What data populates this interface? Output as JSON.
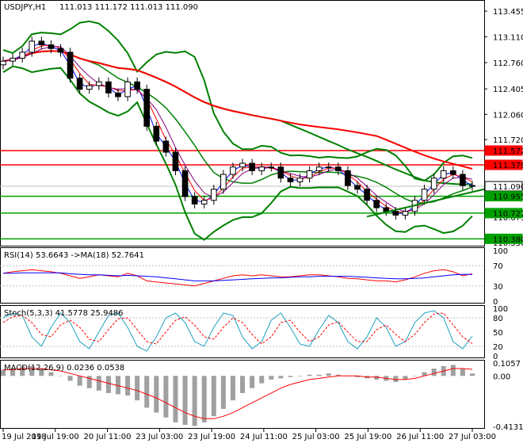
{
  "chart_data": {
    "type": "candlestick",
    "symbol_label": "USDJPY,H1",
    "ohlc_label": "111.013 111.172 111.013 111.090",
    "price_ticks": [
      "113.455",
      "113.110",
      "112.760",
      "112.405",
      "112.060",
      "111.720",
      "111.375",
      "111.030",
      "110.675",
      "110.330"
    ],
    "price_range": [
      110.33,
      113.52
    ],
    "levels": [
      {
        "label": "111.572",
        "value": 111.572,
        "kind": "resistance",
        "color": "#ff0000"
      },
      {
        "label": "111.379",
        "value": 111.379,
        "kind": "resistance",
        "color": "#ff0000"
      },
      {
        "label": "111.090",
        "value": 111.09,
        "kind": "current",
        "color": "#c0c0c0"
      },
      {
        "label": "110.955",
        "value": 110.955,
        "kind": "support",
        "color": "#00a000"
      },
      {
        "label": "110.727",
        "value": 110.727,
        "kind": "support",
        "color": "#00a000"
      },
      {
        "label": "110.380",
        "value": 110.38,
        "kind": "support",
        "color": "#00a000"
      }
    ],
    "closes": [
      112.78,
      112.82,
      112.9,
      113.05,
      113.0,
      112.95,
      112.9,
      112.55,
      112.4,
      112.45,
      112.5,
      112.35,
      112.3,
      112.5,
      112.4,
      111.9,
      111.7,
      111.55,
      111.3,
      110.95,
      110.85,
      110.9,
      111.05,
      111.25,
      111.35,
      111.4,
      111.3,
      111.35,
      111.35,
      111.2,
      111.15,
      111.2,
      111.3,
      111.35,
      111.35,
      111.3,
      111.1,
      111.05,
      110.9,
      110.8,
      110.75,
      110.7,
      110.75,
      110.9,
      111.05,
      111.2,
      111.3,
      111.25,
      111.1,
      111.09
    ],
    "time_labels": [
      "19 Jul 2018",
      "19 Jul 19:00",
      "20 Jul 11:00",
      "23 Jul 03:00",
      "23 Jul 19:00",
      "24 Jul 11:00",
      "25 Jul 03:00",
      "25 Jul 19:00",
      "26 Jul 11:00",
      "27 Jul 03:00"
    ],
    "rsi": {
      "label": "RSI(14) 53.6643 ->MA(18) 52.7641",
      "ticks": [
        "100",
        "70",
        "30",
        "0"
      ],
      "values": [
        55,
        58,
        60,
        62,
        60,
        58,
        55,
        50,
        45,
        48,
        52,
        50,
        48,
        55,
        50,
        40,
        38,
        36,
        34,
        32,
        30,
        35,
        40,
        45,
        50,
        52,
        50,
        52,
        50,
        48,
        48,
        50,
        52,
        52,
        50,
        48,
        45,
        44,
        42,
        40,
        40,
        38,
        42,
        48,
        55,
        60,
        62,
        58,
        50,
        54
      ],
      "ma": [
        55,
        55,
        56,
        56,
        56,
        56,
        56,
        54,
        53,
        52,
        52,
        51,
        50,
        51,
        50,
        49,
        48,
        46,
        44,
        42,
        40,
        40,
        40,
        41,
        42,
        43,
        44,
        45,
        46,
        46,
        47,
        48,
        48,
        49,
        49,
        49,
        49,
        48,
        47,
        46,
        45,
        44,
        44,
        45,
        46,
        48,
        50,
        52,
        53,
        52.8
      ]
    },
    "stoch": {
      "label": "Stoch(5,3,3) 41.5778 25.9486",
      "ticks": [
        "100",
        "80",
        "50",
        "20",
        "0"
      ],
      "k": [
        80,
        90,
        85,
        40,
        20,
        60,
        90,
        70,
        30,
        15,
        50,
        85,
        90,
        60,
        20,
        10,
        40,
        80,
        90,
        70,
        30,
        20,
        60,
        90,
        85,
        40,
        15,
        30,
        75,
        90,
        60,
        25,
        20,
        55,
        85,
        70,
        30,
        15,
        40,
        80,
        60,
        20,
        30,
        70,
        90,
        95,
        80,
        30,
        15,
        41.6
      ],
      "d": [
        70,
        82,
        85,
        70,
        45,
        40,
        65,
        75,
        60,
        35,
        30,
        55,
        78,
        80,
        55,
        30,
        25,
        50,
        75,
        82,
        65,
        40,
        35,
        60,
        80,
        70,
        45,
        25,
        40,
        70,
        75,
        50,
        30,
        40,
        65,
        72,
        50,
        30,
        30,
        55,
        65,
        45,
        30,
        45,
        70,
        88,
        90,
        65,
        40,
        25.9
      ]
    },
    "macd": {
      "label": "MACD(12,26,9) 0.0236 0.0538",
      "ticks": [
        "0.1057",
        "0.00",
        "-0.4131"
      ],
      "hist": [
        0.05,
        0.06,
        0.08,
        0.08,
        0.06,
        0.03,
        0.0,
        -0.04,
        -0.08,
        -0.1,
        -0.12,
        -0.14,
        -0.15,
        -0.16,
        -0.2,
        -0.26,
        -0.3,
        -0.34,
        -0.38,
        -0.4,
        -0.41,
        -0.38,
        -0.33,
        -0.27,
        -0.2,
        -0.14,
        -0.1,
        -0.06,
        -0.03,
        -0.02,
        -0.01,
        0.0,
        0.01,
        0.01,
        0.02,
        0.01,
        0.0,
        -0.01,
        -0.02,
        -0.03,
        -0.04,
        -0.05,
        -0.03,
        0.0,
        0.03,
        0.06,
        0.08,
        0.09,
        0.06,
        0.02
      ],
      "signal": [
        0.05,
        0.05,
        0.06,
        0.06,
        0.06,
        0.05,
        0.04,
        0.02,
        0.0,
        -0.02,
        -0.04,
        -0.06,
        -0.08,
        -0.1,
        -0.12,
        -0.15,
        -0.18,
        -0.22,
        -0.26,
        -0.3,
        -0.33,
        -0.35,
        -0.35,
        -0.33,
        -0.3,
        -0.26,
        -0.22,
        -0.18,
        -0.14,
        -0.1,
        -0.07,
        -0.05,
        -0.03,
        -0.02,
        -0.01,
        0.0,
        0.0,
        0.0,
        -0.01,
        -0.01,
        -0.02,
        -0.03,
        -0.03,
        -0.02,
        0.0,
        0.02,
        0.04,
        0.06,
        0.06,
        0.054
      ]
    }
  }
}
